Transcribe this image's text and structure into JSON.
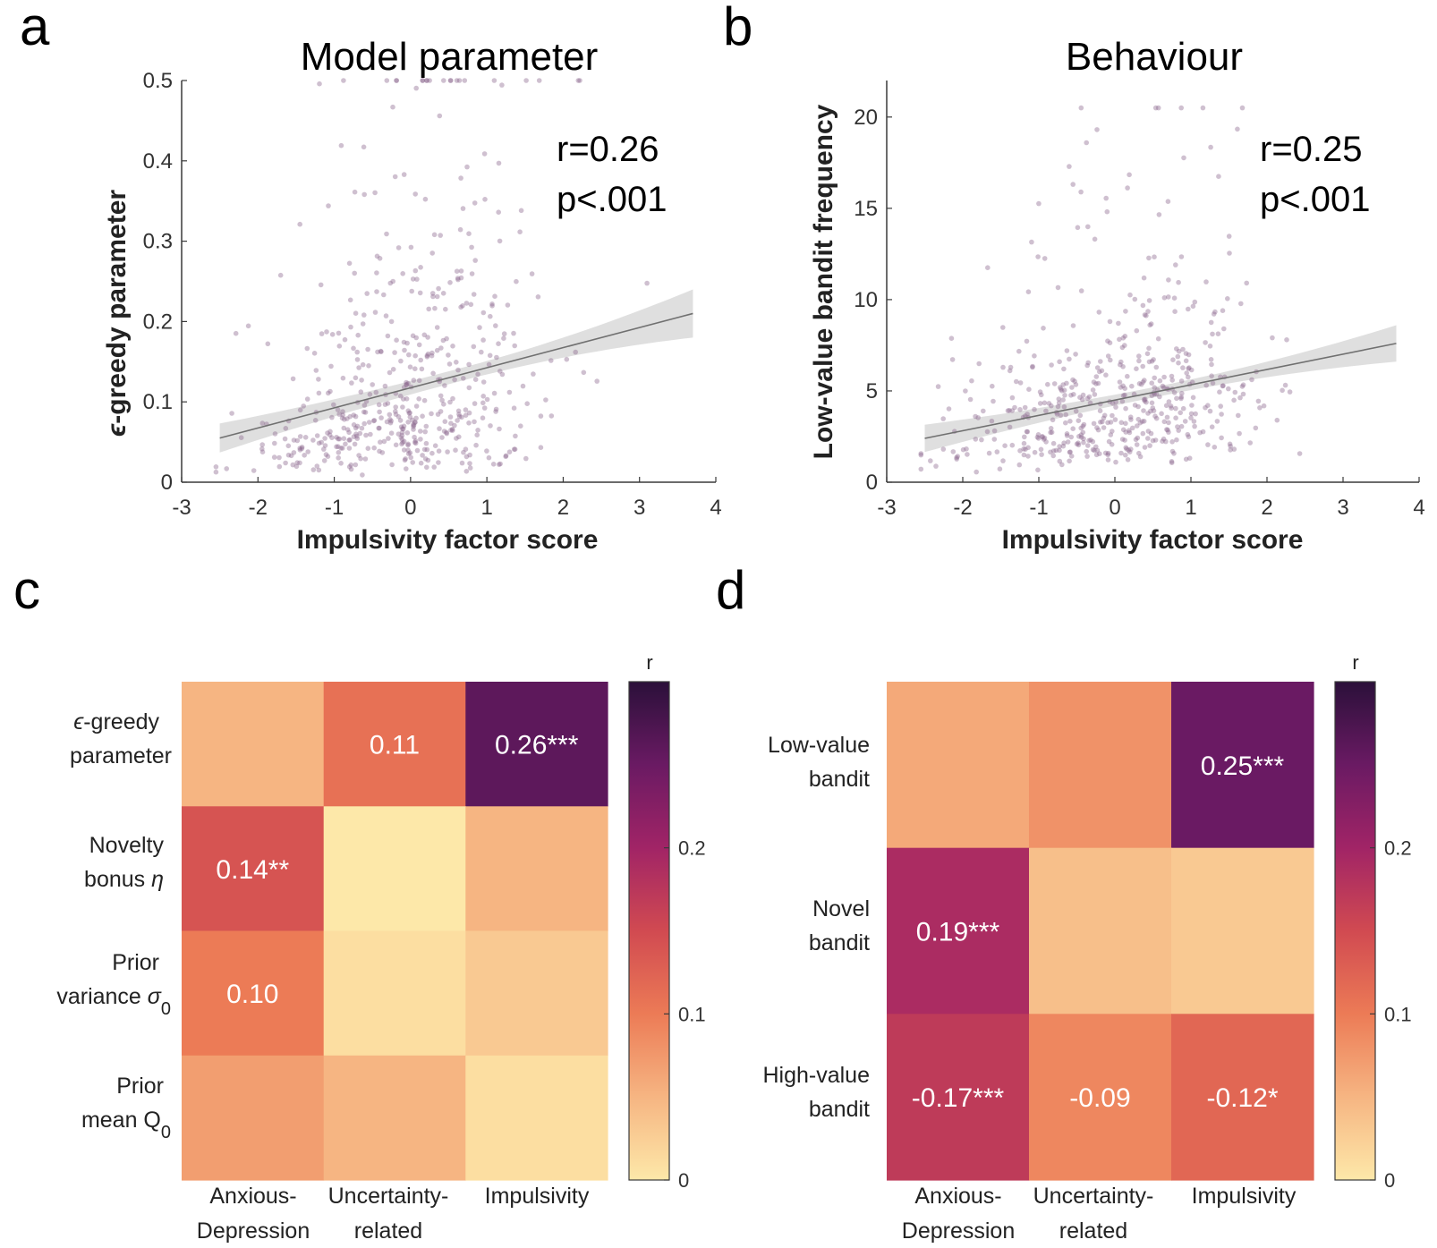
{
  "colors": {
    "dot": "#8c6a8e",
    "fit_line": "#707070",
    "ci_band": "#d4d4d4",
    "axis": "#3a3a3a",
    "colormap": [
      "#fde8a9",
      "#f6b582",
      "#ec7b56",
      "#d14a51",
      "#a12466",
      "#6a1a63",
      "#2b103a"
    ]
  },
  "chart_data": [
    {
      "panel": "a",
      "type": "scatter",
      "title": "Model parameter",
      "xlabel": "Impulsivity factor score",
      "ylabel": "ϵ-greedy parameter",
      "xlim": [
        -3,
        4
      ],
      "ylim": [
        0,
        0.5
      ],
      "xticks": [
        "-3",
        "-2",
        "-1",
        "0",
        "1",
        "2",
        "3",
        "4"
      ],
      "yticks": [
        "0",
        "0.1",
        "0.2",
        "0.3",
        "0.4",
        "0.5"
      ],
      "stat_r": "r=0.26",
      "stat_p": "p<.001",
      "fit": {
        "x": [
          -2.5,
          3.7
        ],
        "y": [
          0.055,
          0.21
        ],
        "ci_halfwidth_ends": [
          0.018,
          0.03
        ],
        "ci_halfwidth_mid": 0.008
      },
      "points_summary": {
        "n": 520,
        "x_mean": 0.0,
        "x_sd": 0.95,
        "seed": 11
      }
    },
    {
      "panel": "b",
      "type": "scatter",
      "title": "Behaviour",
      "xlabel": "Impulsivity factor score",
      "ylabel": "Low-value bandit frequency",
      "xlim": [
        -3,
        4
      ],
      "ylim": [
        0,
        22
      ],
      "xticks": [
        "-3",
        "-2",
        "-1",
        "0",
        "1",
        "2",
        "3",
        "4"
      ],
      "yticks": [
        "0",
        "5",
        "10",
        "15",
        "20"
      ],
      "stat_r": "r=0.25",
      "stat_p": "p<.001",
      "fit": {
        "x": [
          -2.5,
          3.7
        ],
        "y": [
          2.4,
          7.6
        ],
        "ci_halfwidth_ends": [
          0.75,
          1.0
        ],
        "ci_halfwidth_mid": 0.28
      },
      "points_summary": {
        "n": 520,
        "x_mean": 0.0,
        "x_sd": 0.95,
        "seed": 23
      }
    },
    {
      "panel": "c",
      "type": "heatmap",
      "rows": [
        "ϵ-greedy parameter",
        "Novelty bonus η",
        "Prior variance σ0",
        "Prior mean Q0"
      ],
      "columns": [
        "Anxious-Depression",
        "Uncertainty-related",
        "Impulsivity"
      ],
      "values": [
        [
          0.05,
          0.11,
          0.26
        ],
        [
          0.14,
          0.0,
          0.05
        ],
        [
          0.1,
          0.01,
          0.03
        ],
        [
          0.07,
          0.05,
          0.01
        ]
      ],
      "labels": [
        [
          "",
          "0.11",
          "0.26***"
        ],
        [
          "0.14**",
          "",
          ""
        ],
        [
          "0.10",
          "",
          ""
        ],
        [
          "",
          "",
          ""
        ]
      ],
      "colorbar": {
        "title": "r",
        "range": [
          0,
          0.3
        ],
        "ticks": [
          "0",
          "0.1",
          "0.2"
        ]
      }
    },
    {
      "panel": "d",
      "type": "heatmap",
      "rows": [
        "Low-value bandit",
        "Novel bandit",
        "High-value bandit"
      ],
      "columns": [
        "Anxious-Depression",
        "Uncertainty-related",
        "Impulsivity"
      ],
      "values": [
        [
          0.06,
          0.08,
          0.25
        ],
        [
          0.19,
          0.04,
          0.03
        ],
        [
          0.17,
          0.09,
          0.12
        ]
      ],
      "labels": [
        [
          "",
          "",
          "0.25***"
        ],
        [
          "0.19***",
          "",
          ""
        ],
        [
          "-0.17***",
          "-0.09",
          "-0.12*"
        ]
      ],
      "colorbar": {
        "title": "r",
        "range": [
          0,
          0.3
        ],
        "ticks": [
          "0",
          "0.1",
          "0.2"
        ]
      }
    }
  ],
  "panel_a": {
    "letter": "a",
    "title": "Model parameter",
    "ylabel_eps": "ϵ",
    "ylabel_rest": "-greedy parameter",
    "xlabel": "Impulsivity factor score",
    "stat_r": "r=0.26",
    "stat_p": "p<.001"
  },
  "panel_b": {
    "letter": "b",
    "title": "Behaviour",
    "ylabel": "Low-value bandit frequency",
    "xlabel": "Impulsivity factor score",
    "stat_r": "r=0.25",
    "stat_p": "p<.001"
  },
  "panel_c": {
    "letter": "c",
    "row_labels": [
      {
        "l1_sym": "ϵ",
        "l1": "-greedy",
        "l2": "parameter"
      },
      {
        "l1": "Novelty",
        "l2": "bonus ",
        "l2_sym": "η"
      },
      {
        "l1": "Prior",
        "l2": "variance ",
        "l2_sym": "σ",
        "l2_sub": "0"
      },
      {
        "l1": "Prior",
        "l2": "mean Q",
        "l2_sub": "0"
      }
    ],
    "col_labels": [
      {
        "l1": "Anxious-",
        "l2": "Depression"
      },
      {
        "l1": "Uncertainty-",
        "l2": "related"
      },
      {
        "l1": "Impulsivity",
        "l2": ""
      }
    ]
  },
  "panel_d": {
    "letter": "d",
    "row_labels": [
      {
        "l1": "Low-value",
        "l2": "bandit"
      },
      {
        "l1": "Novel",
        "l2": "bandit"
      },
      {
        "l1": "High-value",
        "l2": "bandit"
      }
    ],
    "col_labels": [
      {
        "l1": "Anxious-",
        "l2": "Depression"
      },
      {
        "l1": "Uncertainty-",
        "l2": "related"
      },
      {
        "l1": "Impulsivity",
        "l2": ""
      }
    ]
  }
}
